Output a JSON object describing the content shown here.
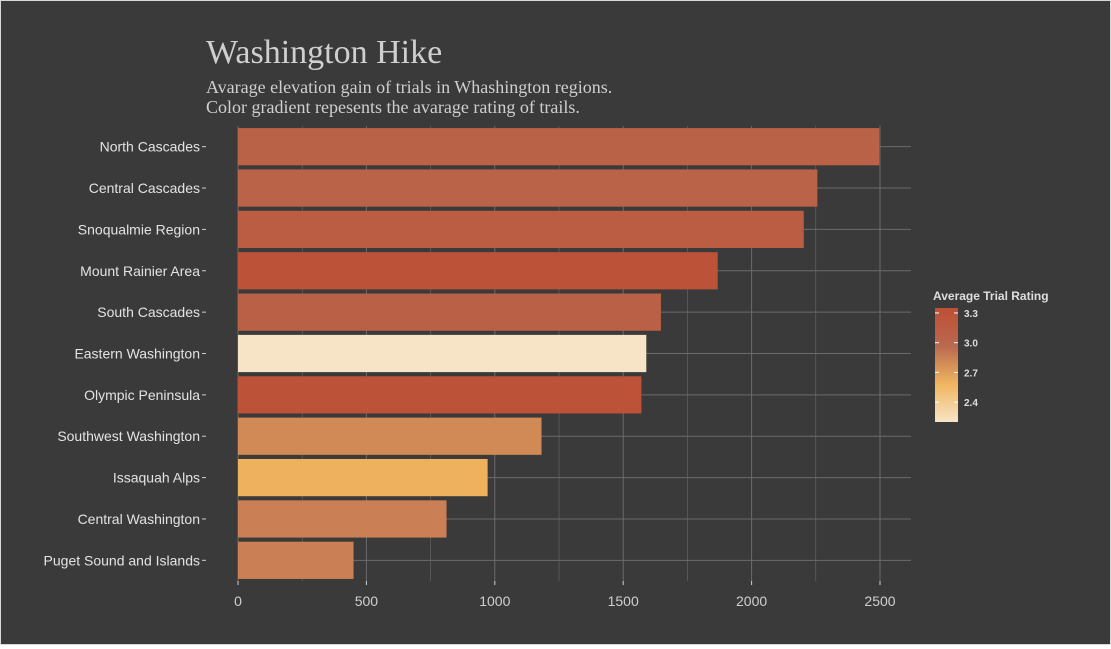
{
  "chart_data": {
    "type": "bar",
    "orientation": "horizontal",
    "title": "Washington Hike",
    "subtitle_lines": [
      "Avarage elevation gain of trials in Whashington regions.",
      "Color gradient repesents the avarage rating of trails."
    ],
    "xlabel": "",
    "ylabel": "",
    "xlim": [
      0,
      2620
    ],
    "x_ticks": [
      0,
      500,
      1000,
      1500,
      2000,
      2500
    ],
    "grid": true,
    "categories": [
      "North Cascades",
      "Central Cascades",
      "Snoqualmie Region",
      "Mount Rainier Area",
      "South Cascades",
      "Eastern Washington",
      "Olympic Peninsula",
      "Southwest Washington",
      "Issaquah Alps",
      "Central Washington",
      "Puget Sound and Islands"
    ],
    "values": [
      2497,
      2256,
      2203,
      1868,
      1647,
      1590,
      1571,
      1182,
      972,
      812,
      450
    ],
    "ratings": [
      3.07,
      3.05,
      3.15,
      3.3,
      3.1,
      2.2,
      3.3,
      2.8,
      2.6,
      2.85,
      2.85
    ],
    "legend": {
      "title": "Average Trial Rating",
      "position": "right",
      "ticks": [
        "3.3",
        "3.0",
        "2.7",
        "2.4"
      ],
      "tick_values": [
        3.3,
        3.0,
        2.7,
        2.4
      ],
      "range": [
        2.2,
        3.35
      ],
      "colors": [
        "#f7e4c6",
        "#f0b560",
        "#b9694f",
        "#bd4f35"
      ]
    },
    "colors": {
      "background": "#3a3a3a",
      "grid": "#6b6b6b"
    }
  }
}
